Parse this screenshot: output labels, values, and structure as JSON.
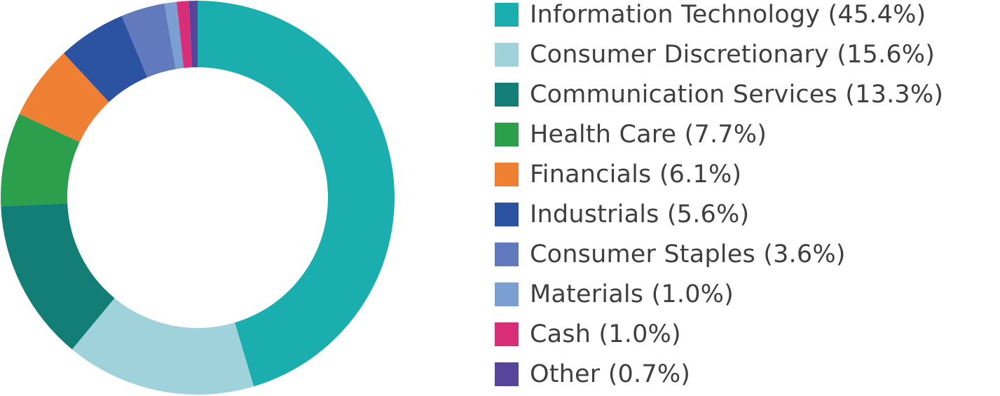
{
  "chart_data": {
    "type": "pie",
    "title": "",
    "donut": true,
    "categories": [
      "Information Technology",
      "Consumer Discretionary",
      "Communication Services",
      "Health Care",
      "Financials",
      "Industrials",
      "Consumer Staples",
      "Materials",
      "Cash",
      "Other"
    ],
    "values": [
      45.4,
      15.6,
      13.3,
      7.7,
      6.1,
      5.6,
      3.6,
      1.0,
      1.0,
      0.7
    ],
    "colors": [
      "#1aaeae",
      "#9fd2db",
      "#127e76",
      "#2b9f4b",
      "#ee7f33",
      "#2b53a2",
      "#6179bd",
      "#7c9fd3",
      "#d72e77",
      "#56459a"
    ],
    "legend": {
      "position": "right",
      "labels": [
        "Information Technology (45.4%)",
        "Consumer Discretionary (15.6%)",
        "Communication Services (13.3%)",
        "Health Care (7.7%)",
        "Financials (6.1%)",
        "Industrials (5.6%)",
        "Consumer Staples (3.6%)",
        "Materials (1.0%)",
        "Cash (1.0%)",
        "Other (0.7%)"
      ]
    }
  }
}
